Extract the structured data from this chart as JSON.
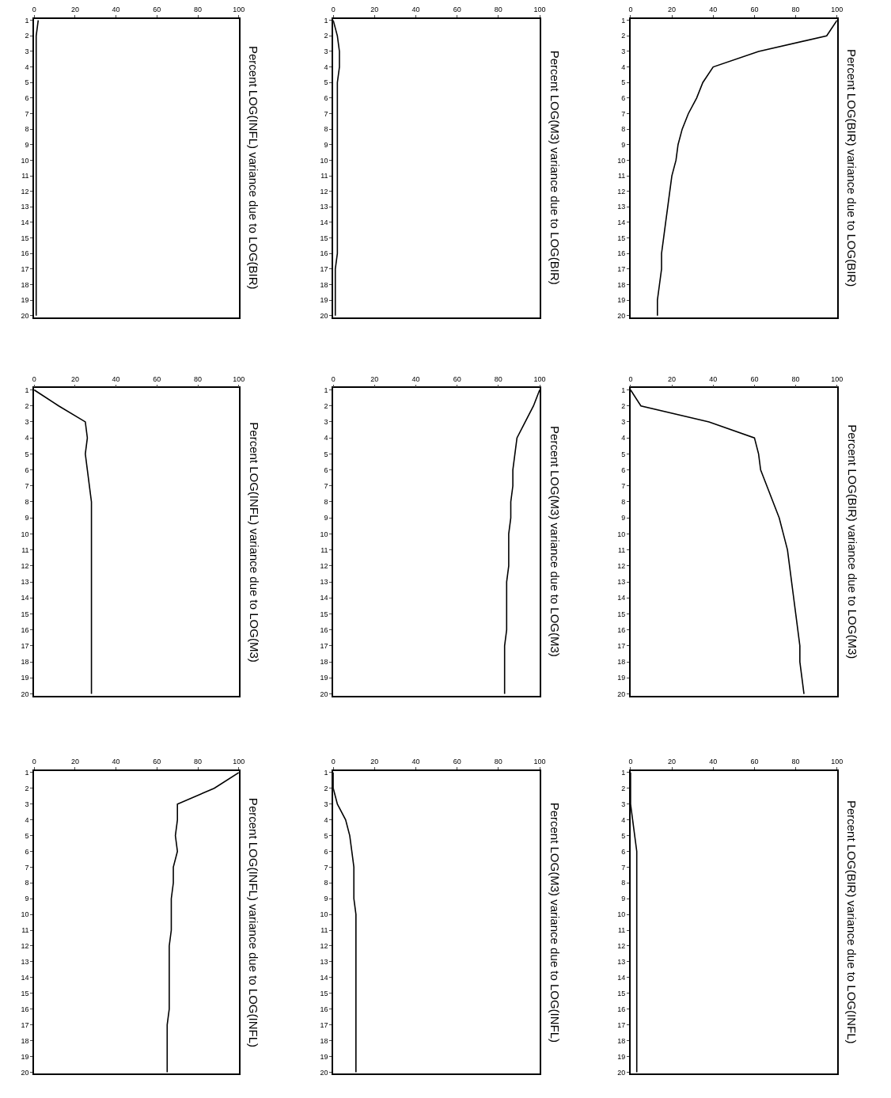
{
  "chart_data": [
    {
      "type": "line",
      "orientation": "horizontal",
      "title": "Percent LOG(BIR) variance due to LOG(BIR)",
      "x": [
        1,
        2,
        3,
        4,
        5,
        6,
        7,
        8,
        9,
        10,
        11,
        12,
        13,
        14,
        15,
        16,
        17,
        18,
        19,
        20
      ],
      "values": [
        100,
        95,
        62,
        40,
        35,
        32,
        28,
        25,
        23,
        22,
        20,
        19,
        18,
        17,
        16,
        15,
        15,
        14,
        13,
        13
      ],
      "color": "#000000",
      "ylim": [
        20,
        1
      ],
      "yticks": [
        1,
        2,
        3,
        4,
        5,
        6,
        7,
        8,
        9,
        10,
        11,
        12,
        13,
        14,
        15,
        16,
        17,
        18,
        19,
        20
      ],
      "xlim": [
        0,
        100
      ],
      "xticks": [
        0,
        20,
        40,
        60,
        80,
        100
      ]
    },
    {
      "type": "line",
      "orientation": "horizontal",
      "title": "Percent LOG(BIR) variance due to LOG(M3)",
      "x": [
        1,
        2,
        3,
        4,
        5,
        6,
        7,
        8,
        9,
        10,
        11,
        12,
        13,
        14,
        15,
        16,
        17,
        18,
        19,
        20
      ],
      "values": [
        0,
        5,
        38,
        60,
        62,
        63,
        66,
        69,
        72,
        74,
        76,
        77,
        78,
        79,
        80,
        81,
        82,
        82,
        83,
        84
      ],
      "color": "#000000",
      "ylim": [
        20,
        1
      ],
      "yticks": [
        1,
        2,
        3,
        4,
        5,
        6,
        7,
        8,
        9,
        10,
        11,
        12,
        13,
        14,
        15,
        16,
        17,
        18,
        19,
        20
      ],
      "xlim": [
        0,
        100
      ],
      "xticks": [
        0,
        20,
        40,
        60,
        80,
        100
      ]
    },
    {
      "type": "line",
      "orientation": "horizontal",
      "title": "Percent LOG(BIR) variance due to LOG(INFL)",
      "x": [
        1,
        2,
        3,
        4,
        5,
        6,
        7,
        8,
        9,
        10,
        11,
        12,
        13,
        14,
        15,
        16,
        17,
        18,
        19,
        20
      ],
      "values": [
        0,
        0,
        0,
        1,
        2,
        3,
        3,
        3,
        3,
        3,
        3,
        3,
        3,
        3,
        3,
        3,
        3,
        3,
        3,
        3
      ],
      "color": "#000000",
      "ylim": [
        20,
        1
      ],
      "yticks": [
        1,
        2,
        3,
        4,
        5,
        6,
        7,
        8,
        9,
        10,
        11,
        12,
        13,
        14,
        15,
        16,
        17,
        18,
        19,
        20
      ],
      "xlim": [
        0,
        100
      ],
      "xticks": [
        0,
        20,
        40,
        60,
        80,
        100
      ]
    },
    {
      "type": "line",
      "orientation": "horizontal",
      "title": "Percent LOG(M3) variance due to LOG(BIR)",
      "x": [
        1,
        2,
        3,
        4,
        5,
        6,
        7,
        8,
        9,
        10,
        11,
        12,
        13,
        14,
        15,
        16,
        17,
        18,
        19,
        20
      ],
      "values": [
        0,
        2,
        3,
        3,
        2,
        2,
        2,
        2,
        2,
        2,
        2,
        2,
        2,
        2,
        2,
        2,
        1,
        1,
        1,
        1
      ],
      "color": "#000000",
      "ylim": [
        20,
        1
      ],
      "yticks": [
        1,
        2,
        3,
        4,
        5,
        6,
        7,
        8,
        9,
        10,
        11,
        12,
        13,
        14,
        15,
        16,
        17,
        18,
        19,
        20
      ],
      "xlim": [
        0,
        100
      ],
      "xticks": [
        0,
        20,
        40,
        60,
        80,
        100
      ]
    },
    {
      "type": "line",
      "orientation": "horizontal",
      "title": "Percent LOG(M3) variance due to LOG(M3)",
      "x": [
        1,
        2,
        3,
        4,
        5,
        6,
        7,
        8,
        9,
        10,
        11,
        12,
        13,
        14,
        15,
        16,
        17,
        18,
        19,
        20
      ],
      "values": [
        100,
        97,
        93,
        89,
        88,
        87,
        87,
        86,
        86,
        85,
        85,
        85,
        84,
        84,
        84,
        84,
        83,
        83,
        83,
        83
      ],
      "color": "#000000",
      "ylim": [
        20,
        1
      ],
      "yticks": [
        1,
        2,
        3,
        4,
        5,
        6,
        7,
        8,
        9,
        10,
        11,
        12,
        13,
        14,
        15,
        16,
        17,
        18,
        19,
        20
      ],
      "xlim": [
        0,
        100
      ],
      "xticks": [
        0,
        20,
        40,
        60,
        80,
        100
      ]
    },
    {
      "type": "line",
      "orientation": "horizontal",
      "title": "Percent LOG(M3) variance due to LOG(INFL)",
      "x": [
        1,
        2,
        3,
        4,
        5,
        6,
        7,
        8,
        9,
        10,
        11,
        12,
        13,
        14,
        15,
        16,
        17,
        18,
        19,
        20
      ],
      "values": [
        0,
        0,
        2,
        6,
        8,
        9,
        10,
        10,
        10,
        11,
        11,
        11,
        11,
        11,
        11,
        11,
        11,
        11,
        11,
        11
      ],
      "color": "#000000",
      "ylim": [
        20,
        1
      ],
      "yticks": [
        1,
        2,
        3,
        4,
        5,
        6,
        7,
        8,
        9,
        10,
        11,
        12,
        13,
        14,
        15,
        16,
        17,
        18,
        19,
        20
      ],
      "xlim": [
        0,
        100
      ],
      "xticks": [
        0,
        20,
        40,
        60,
        80,
        100
      ]
    },
    {
      "type": "line",
      "orientation": "horizontal",
      "title": "Percent LOG(INFL) variance due to LOG(BIR)",
      "x": [
        1,
        2,
        3,
        4,
        5,
        6,
        7,
        8,
        9,
        10,
        11,
        12,
        13,
        14,
        15,
        16,
        17,
        18,
        19,
        20
      ],
      "values": [
        2,
        1,
        1,
        1,
        1,
        1,
        1,
        1,
        1,
        1,
        1,
        1,
        1,
        1,
        1,
        1,
        1,
        1,
        1,
        1
      ],
      "color": "#000000",
      "ylim": [
        20,
        1
      ],
      "yticks": [
        1,
        2,
        3,
        4,
        5,
        6,
        7,
        8,
        9,
        10,
        11,
        12,
        13,
        14,
        15,
        16,
        17,
        18,
        19,
        20
      ],
      "xlim": [
        0,
        100
      ],
      "xticks": [
        0,
        20,
        40,
        60,
        80,
        100
      ]
    },
    {
      "type": "line",
      "orientation": "horizontal",
      "title": "Percent LOG(INFL) variance due to LOG(M3)",
      "x": [
        1,
        2,
        3,
        4,
        5,
        6,
        7,
        8,
        9,
        10,
        11,
        12,
        13,
        14,
        15,
        16,
        17,
        18,
        19,
        20
      ],
      "values": [
        0,
        12,
        25,
        26,
        25,
        26,
        27,
        28,
        28,
        28,
        28,
        28,
        28,
        28,
        28,
        28,
        28,
        28,
        28,
        28
      ],
      "color": "#000000",
      "ylim": [
        20,
        1
      ],
      "yticks": [
        1,
        2,
        3,
        4,
        5,
        6,
        7,
        8,
        9,
        10,
        11,
        12,
        13,
        14,
        15,
        16,
        17,
        18,
        19,
        20
      ],
      "xlim": [
        0,
        100
      ],
      "xticks": [
        0,
        20,
        40,
        60,
        80,
        100
      ]
    },
    {
      "type": "line",
      "orientation": "horizontal",
      "title": "Percent LOG(INFL) variance due to LOG(INFL)",
      "x": [
        1,
        2,
        3,
        4,
        5,
        6,
        7,
        8,
        9,
        10,
        11,
        12,
        13,
        14,
        15,
        16,
        17,
        18,
        19,
        20
      ],
      "values": [
        100,
        88,
        70,
        70,
        69,
        70,
        68,
        68,
        67,
        67,
        67,
        66,
        66,
        66,
        66,
        66,
        65,
        65,
        65,
        65
      ],
      "color": "#000000",
      "ylim": [
        20,
        1
      ],
      "yticks": [
        1,
        2,
        3,
        4,
        5,
        6,
        7,
        8,
        9,
        10,
        11,
        12,
        13,
        14,
        15,
        16,
        17,
        18,
        19,
        20
      ],
      "xlim": [
        0,
        100
      ],
      "xticks": [
        0,
        20,
        40,
        60,
        80,
        100
      ]
    }
  ]
}
